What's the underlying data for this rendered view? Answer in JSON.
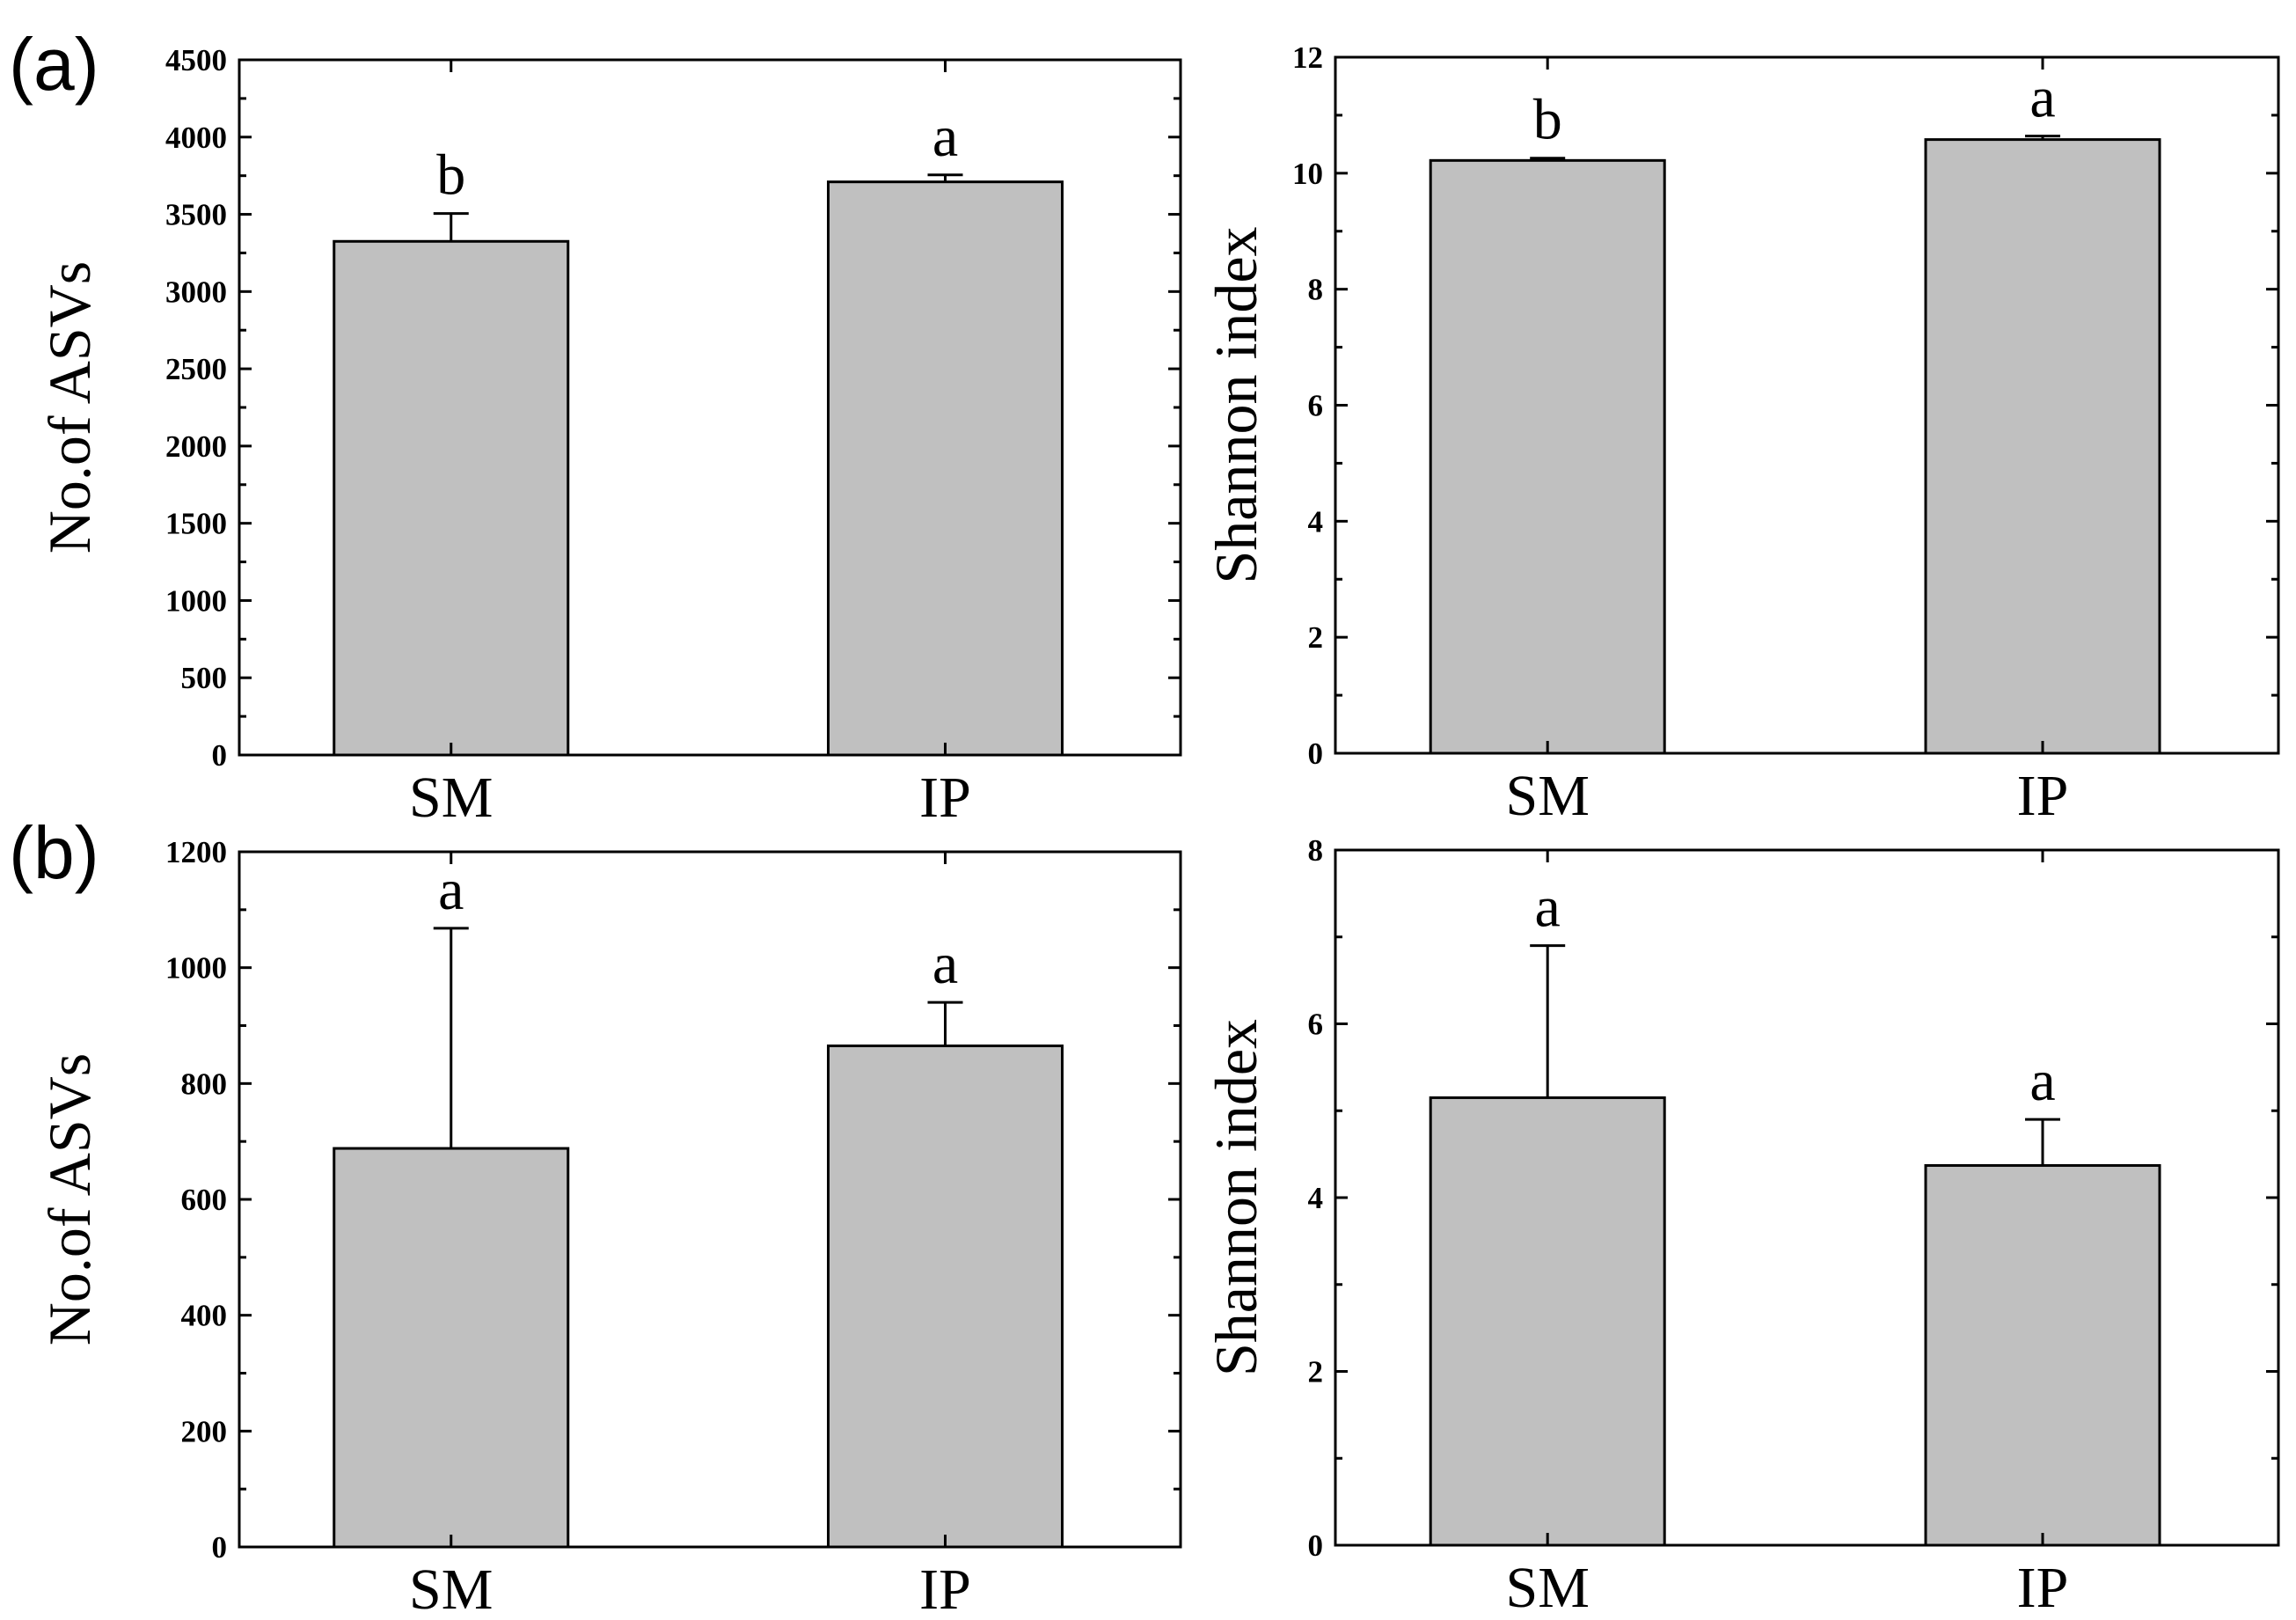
{
  "panel_labels": [
    "(a)",
    "(b)"
  ],
  "chart_data": [
    {
      "type": "bar",
      "panel": "(a)",
      "categories": [
        "SM",
        "IP"
      ],
      "values": [
        3325,
        3710
      ],
      "errors": [
        180,
        45
      ],
      "significance": [
        "b",
        "a"
      ],
      "xlabel": "",
      "ylabel": "No.of ASVs",
      "ylim": [
        0,
        4500
      ],
      "yticks": [
        "0",
        "500",
        "1000",
        "1500",
        "2000",
        "2500",
        "3000",
        "3500",
        "4000",
        "4500"
      ],
      "bar_color": "#c0c0c0",
      "grid": false
    },
    {
      "type": "bar",
      "panel": "(a)",
      "categories": [
        "SM",
        "IP"
      ],
      "values": [
        10.22,
        10.58
      ],
      "errors": [
        0.04,
        0.06
      ],
      "significance": [
        "b",
        "a"
      ],
      "xlabel": "",
      "ylabel": "Shannon index",
      "ylim": [
        0,
        12
      ],
      "yticks": [
        "0",
        "2",
        "4",
        "6",
        "8",
        "10",
        "12"
      ],
      "bar_color": "#c0c0c0",
      "grid": false
    },
    {
      "type": "bar",
      "panel": "(b)",
      "categories": [
        "SM",
        "IP"
      ],
      "values": [
        688,
        865
      ],
      "errors": [
        380,
        75
      ],
      "significance": [
        "a",
        "a"
      ],
      "xlabel": "",
      "ylabel": "No.of ASVs",
      "ylim": [
        0,
        1200
      ],
      "yticks": [
        "0",
        "200",
        "400",
        "600",
        "800",
        "1000",
        "1200"
      ],
      "bar_color": "#c0c0c0",
      "grid": false
    },
    {
      "type": "bar",
      "panel": "(b)",
      "categories": [
        "SM",
        "IP"
      ],
      "values": [
        5.15,
        4.37
      ],
      "errors": [
        1.75,
        0.53
      ],
      "significance": [
        "a",
        "a"
      ],
      "xlabel": "",
      "ylabel": "Shannon index",
      "ylim": [
        0,
        8
      ],
      "yticks": [
        "0",
        "2",
        "4",
        "6",
        "8"
      ],
      "bar_color": "#c0c0c0",
      "grid": false
    }
  ]
}
